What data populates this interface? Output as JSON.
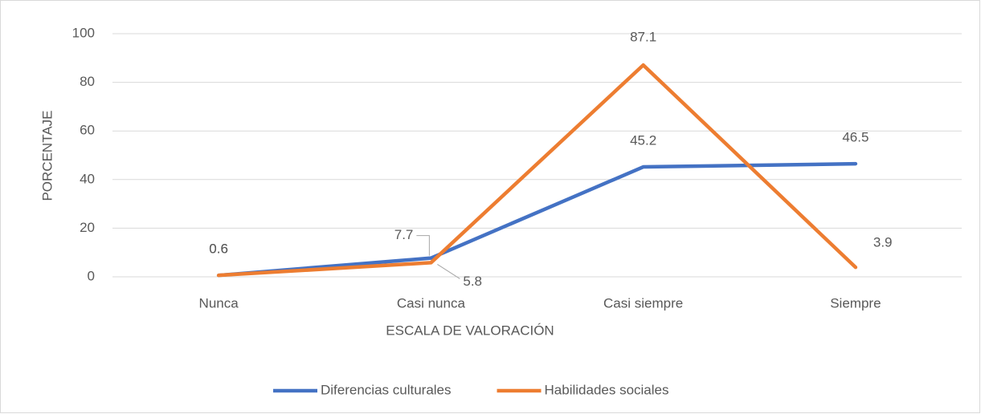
{
  "chart_data": {
    "type": "line",
    "categories": [
      "Nunca",
      "Casi nunca",
      "Casi siempre",
      "Siempre"
    ],
    "series": [
      {
        "name": "Diferencias culturales",
        "color": "#4472c4",
        "values": [
          0.6,
          7.7,
          45.2,
          46.5
        ]
      },
      {
        "name": "Habilidades sociales",
        "color": "#ed7d31",
        "values": [
          0.6,
          5.8,
          87.1,
          3.9
        ]
      }
    ],
    "ylim": [
      0,
      100
    ],
    "yticks": [
      0,
      20,
      40,
      60,
      80,
      100
    ],
    "grid": true,
    "ylabel": "PORCENTAJE",
    "xlabel": "ESCALA DE VALORACIÓN",
    "legend": "bottom"
  }
}
